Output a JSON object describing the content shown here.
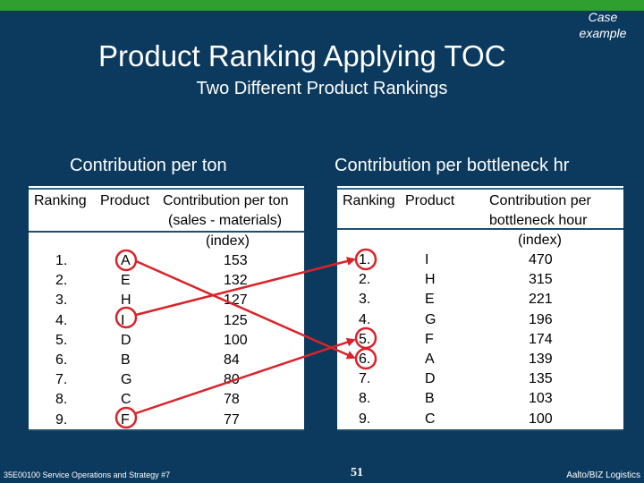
{
  "slide": {
    "title": "Product Ranking Applying TOC",
    "tag": "Case example",
    "subtitle": "Two Different Product Rankings"
  },
  "left": {
    "heading": "Contribution per ton",
    "headers": {
      "ranking": "Ranking",
      "product": "Product",
      "contribution_line1": "Contribution per ton",
      "contribution_line2": "(sales - materials)",
      "contribution_line3": "(index)"
    },
    "rows": [
      {
        "rank": "1.",
        "product": "A",
        "value": "153"
      },
      {
        "rank": "2.",
        "product": "E",
        "value": "132"
      },
      {
        "rank": "3.",
        "product": "H",
        "value": "127"
      },
      {
        "rank": "4.",
        "product": "I",
        "value": "125"
      },
      {
        "rank": "5.",
        "product": "D",
        "value": "100"
      },
      {
        "rank": "6.",
        "product": "B",
        "value": "84"
      },
      {
        "rank": "7.",
        "product": "G",
        "value": "80"
      },
      {
        "rank": "8.",
        "product": "C",
        "value": "78"
      },
      {
        "rank": "9.",
        "product": "F",
        "value": "77"
      }
    ]
  },
  "right": {
    "heading": "Contribution per bottleneck hr",
    "headers": {
      "ranking": "Ranking",
      "product": "Product",
      "contribution_line1": "Contribution per",
      "contribution_line2": "bottleneck hour",
      "contribution_line3": "(index)"
    },
    "rows": [
      {
        "rank": "1.",
        "product": "I",
        "value": "470"
      },
      {
        "rank": "2.",
        "product": "H",
        "value": "315"
      },
      {
        "rank": "3.",
        "product": "E",
        "value": "221"
      },
      {
        "rank": "4.",
        "product": "G",
        "value": "196"
      },
      {
        "rank": "5.",
        "product": "F",
        "value": "174"
      },
      {
        "rank": "6.",
        "product": "A",
        "value": "139"
      },
      {
        "rank": "7.",
        "product": "D",
        "value": "135"
      },
      {
        "rank": "8.",
        "product": "B",
        "value": "103"
      },
      {
        "rank": "9.",
        "product": "C",
        "value": "100"
      }
    ]
  },
  "footer": {
    "course": "35E00100 Service Operations and Strategy #7",
    "page": "51",
    "org": "Aalto/BIZ Logistics"
  },
  "colors": {
    "background": "#0b3a5e",
    "accent_bar": "#2f9f2f",
    "annotation": "#d9232a"
  }
}
